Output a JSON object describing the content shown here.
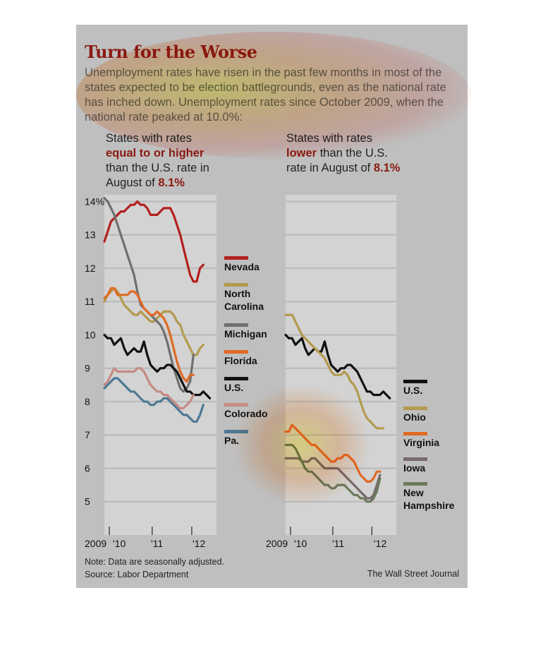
{
  "header": {
    "title": "Turn for the Worse",
    "subtitle": "Unemployment rates have risen in the past few months in most of the states expected to be election battlegrounds, even as the national rate has inched down. Unemployment rates since October 2009, when the national rate peaked at 10.0%:"
  },
  "panels": {
    "left": {
      "head_pre": "States with rates",
      "head_bold": "equal to or higher",
      "head_mid": "than the U.S. rate in August of",
      "head_val": "8.1%"
    },
    "right": {
      "head_pre": "States with rates",
      "head_bold": "lower",
      "head_mid": "than the U.S. rate in August of",
      "head_val": "8.1%"
    }
  },
  "footer": {
    "note": "Note: Data are seasonally adjusted.",
    "source": "Source: Labor Department",
    "credit": "The Wall Street Journal"
  },
  "colors": {
    "background": "#bfbfbf",
    "plot": "#d3d3d3",
    "title": "#8b1a12"
  },
  "chart_data": [
    {
      "type": "line",
      "title": "",
      "x_ticks": [
        "2009",
        "'10",
        "'11",
        "'12"
      ],
      "y_ticks": [
        "14%",
        "13",
        "12",
        "11",
        "10",
        "9",
        "8",
        "7",
        "6",
        "5"
      ],
      "ylim": [
        4.0,
        14.2
      ],
      "series": [
        {
          "name": "Nevada",
          "color": "#b3201e",
          "values": [
            12.8,
            13.1,
            13.4,
            13.5,
            13.6,
            13.7,
            13.7,
            13.8,
            13.9,
            13.9,
            14.0,
            13.9,
            13.9,
            13.8,
            13.6,
            13.6,
            13.6,
            13.7,
            13.8,
            13.8,
            13.8,
            13.6,
            13.3,
            13.0,
            12.6,
            12.2,
            11.8,
            11.6,
            11.6,
            12.0,
            12.1
          ]
        },
        {
          "name": "North Carolina",
          "color": "#b39a4e",
          "values": [
            11.0,
            11.2,
            11.3,
            11.4,
            11.3,
            11.1,
            10.9,
            10.8,
            10.7,
            10.6,
            10.6,
            10.7,
            10.6,
            10.5,
            10.4,
            10.4,
            10.5,
            10.6,
            10.7,
            10.7,
            10.7,
            10.6,
            10.4,
            10.3,
            10.0,
            9.8,
            9.6,
            9.4,
            9.4,
            9.6,
            9.7
          ]
        },
        {
          "name": "Michigan",
          "color": "#6f6f6f",
          "values": [
            14.1,
            14.0,
            13.8,
            13.6,
            13.3,
            13.0,
            12.7,
            12.4,
            12.1,
            11.8,
            11.3,
            10.9,
            10.8,
            10.7,
            10.6,
            10.5,
            10.4,
            10.3,
            10.1,
            9.8,
            9.4,
            9.0,
            8.7,
            8.4,
            8.3,
            8.4,
            8.6,
            9.4
          ]
        },
        {
          "name": "Florida",
          "color": "#e06a23",
          "values": [
            11.1,
            11.2,
            11.4,
            11.4,
            11.2,
            11.2,
            11.2,
            11.2,
            11.3,
            11.3,
            11.2,
            11.0,
            10.8,
            10.7,
            10.6,
            10.6,
            10.7,
            10.6,
            10.5,
            10.3,
            10.0,
            9.6,
            9.2,
            8.9,
            8.7,
            8.6,
            8.8,
            8.8
          ]
        },
        {
          "name": "U.S.",
          "color": "#111111",
          "values": [
            10.0,
            9.9,
            9.9,
            9.7,
            9.8,
            9.9,
            9.6,
            9.4,
            9.5,
            9.6,
            9.5,
            9.5,
            9.8,
            9.4,
            9.1,
            9.0,
            8.9,
            9.0,
            9.0,
            9.1,
            9.1,
            9.0,
            8.9,
            8.7,
            8.5,
            8.3,
            8.3,
            8.2,
            8.2,
            8.2,
            8.3,
            8.2,
            8.1
          ]
        },
        {
          "name": "Colorado",
          "color": "#c58b84",
          "values": [
            8.5,
            8.6,
            8.8,
            9.0,
            8.9,
            8.9,
            8.9,
            8.9,
            8.9,
            8.9,
            9.0,
            9.0,
            8.9,
            8.7,
            8.5,
            8.4,
            8.3,
            8.3,
            8.2,
            8.2,
            8.1,
            8.0,
            7.9,
            7.8,
            7.8,
            7.9,
            8.0,
            8.2
          ]
        },
        {
          "name": "Pa.",
          "color": "#4f7894",
          "values": [
            8.4,
            8.5,
            8.6,
            8.7,
            8.7,
            8.6,
            8.5,
            8.4,
            8.3,
            8.3,
            8.2,
            8.1,
            8.0,
            8.0,
            7.9,
            7.9,
            8.0,
            8.0,
            8.1,
            8.1,
            8.0,
            7.9,
            7.8,
            7.7,
            7.6,
            7.6,
            7.5,
            7.4,
            7.4,
            7.6,
            7.9
          ]
        }
      ]
    },
    {
      "type": "line",
      "title": "",
      "x_ticks": [
        "2009",
        "'10",
        "'11",
        "'12"
      ],
      "ylim": [
        4.0,
        14.2
      ],
      "series": [
        {
          "name": "U.S.",
          "color": "#111111",
          "values": [
            10.0,
            9.9,
            9.9,
            9.7,
            9.8,
            9.9,
            9.6,
            9.4,
            9.5,
            9.6,
            9.5,
            9.5,
            9.8,
            9.4,
            9.1,
            9.0,
            8.9,
            9.0,
            9.0,
            9.1,
            9.1,
            9.0,
            8.9,
            8.7,
            8.5,
            8.3,
            8.3,
            8.2,
            8.2,
            8.2,
            8.3,
            8.2,
            8.1
          ]
        },
        {
          "name": "Ohio",
          "color": "#b39a4e",
          "values": [
            10.6,
            10.6,
            10.6,
            10.4,
            10.2,
            10.0,
            9.9,
            9.8,
            9.7,
            9.6,
            9.5,
            9.4,
            9.3,
            9.1,
            8.9,
            8.8,
            8.8,
            8.8,
            8.9,
            8.8,
            8.6,
            8.5,
            8.3,
            8.0,
            7.7,
            7.5,
            7.4,
            7.3,
            7.2,
            7.2,
            7.2
          ]
        },
        {
          "name": "Virginia",
          "color": "#e06a23",
          "values": [
            7.1,
            7.1,
            7.3,
            7.2,
            7.1,
            7.0,
            6.9,
            6.8,
            6.7,
            6.7,
            6.6,
            6.5,
            6.4,
            6.3,
            6.2,
            6.2,
            6.3,
            6.3,
            6.4,
            6.4,
            6.3,
            6.2,
            6.0,
            5.8,
            5.7,
            5.6,
            5.6,
            5.7,
            5.9,
            5.9
          ]
        },
        {
          "name": "Iowa",
          "color": "#776a6a",
          "values": [
            6.3,
            6.3,
            6.3,
            6.3,
            6.3,
            6.2,
            6.2,
            6.2,
            6.3,
            6.3,
            6.2,
            6.1,
            6.0,
            6.0,
            6.0,
            6.0,
            6.0,
            5.9,
            5.8,
            5.7,
            5.6,
            5.5,
            5.4,
            5.3,
            5.2,
            5.1,
            5.1,
            5.2,
            5.5,
            5.8
          ]
        },
        {
          "name": "New Hampshire",
          "color": "#6a7a5b",
          "values": [
            6.7,
            6.7,
            6.7,
            6.6,
            6.4,
            6.2,
            6.0,
            5.9,
            5.9,
            5.8,
            5.7,
            5.6,
            5.5,
            5.5,
            5.4,
            5.4,
            5.5,
            5.5,
            5.5,
            5.4,
            5.3,
            5.2,
            5.2,
            5.1,
            5.1,
            5.0,
            5.0,
            5.1,
            5.3,
            5.7
          ]
        }
      ]
    }
  ]
}
